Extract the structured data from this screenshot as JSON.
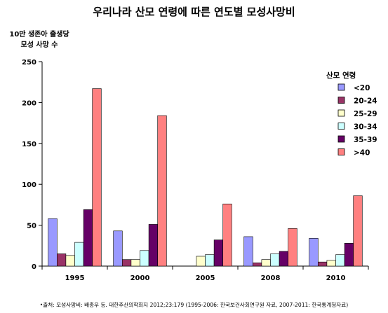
{
  "title": "우리나라 산모 연령에 따른 연도별 모성사망비",
  "ylabel_lines": [
    "10만 생존아 출생당",
    "모성 사망 수"
  ],
  "source": "•출처: 모성사망비: 배종우 등. 대한주산의학회지 2012;23:179 (1995-2006: 한국보건사회연구원 자료, 2007-2011: 한국통계청자료)",
  "colors": {
    "<20": "#9999ff",
    "20-24": "#993366",
    "25-29": "#ffffcc",
    "30-34": "#ccffff",
    "35-39": "#660066",
    ">40": "#ff8080"
  },
  "chart_data": {
    "type": "bar",
    "title": "우리나라 산모 연령에 따른 연도별 모성사망비",
    "xlabel": "",
    "ylabel": "10만 생존아 출생당 모성 사망 수",
    "categories": [
      "1995",
      "2000",
      "2005",
      "2008",
      "2010"
    ],
    "ylim": [
      0,
      250
    ],
    "yticks": [
      0,
      50,
      100,
      150,
      200,
      250
    ],
    "grid": false,
    "legend_title": "산모 연령",
    "legend_position": "right",
    "series": [
      {
        "name": "<20",
        "values": [
          58,
          43,
          0,
          36,
          34
        ]
      },
      {
        "name": "20-24",
        "values": [
          15,
          8,
          0,
          4,
          5
        ]
      },
      {
        "name": "25-29",
        "values": [
          13,
          8,
          12,
          8,
          7
        ]
      },
      {
        "name": "30-34",
        "values": [
          29,
          19,
          14,
          15,
          14
        ]
      },
      {
        "name": "35-39",
        "values": [
          69,
          51,
          32,
          18,
          28
        ]
      },
      {
        "name": ">40",
        "values": [
          217,
          184,
          76,
          46,
          86
        ]
      }
    ]
  }
}
